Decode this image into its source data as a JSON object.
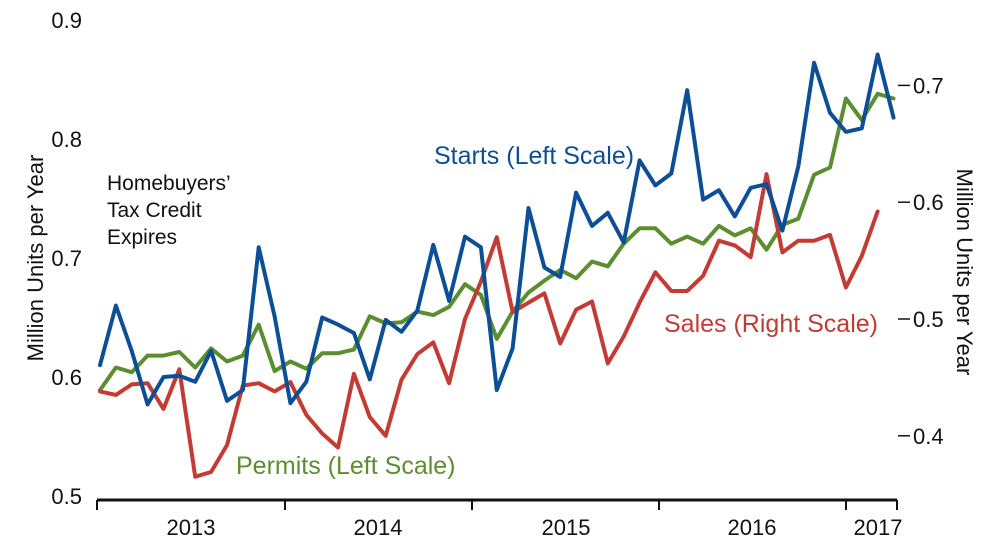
{
  "chart_data": {
    "type": "line",
    "x_axis": {
      "tick_labels": [
        "2013",
        "2014",
        "2015",
        "2016",
        "2017"
      ]
    },
    "left_axis": {
      "label": "Million Units per Year",
      "ticks": [
        "0.5",
        "0.6",
        "0.7",
        "0.8",
        "0.9"
      ],
      "range": [
        0.5,
        0.9
      ]
    },
    "right_axis": {
      "label": "Million Units per Year",
      "ticks": [
        "0.4",
        "0.5",
        "0.6",
        "0.7"
      ],
      "range": [
        0.35,
        0.7
      ],
      "tick_values": [
        0.4,
        0.5,
        0.6,
        0.7
      ]
    },
    "annotation": [
      "Homebuyers’",
      "Tax Credit",
      "Expires"
    ],
    "x_start": "2012-08",
    "series": [
      {
        "name": "Starts (Left Scale)",
        "axis": "left",
        "color": "#0d4f96",
        "values": [
          0.61,
          0.66,
          0.622,
          0.577,
          0.6,
          0.601,
          0.596,
          0.622,
          0.58,
          0.589,
          0.709,
          0.651,
          0.578,
          0.596,
          0.65,
          0.644,
          0.637,
          0.598,
          0.648,
          0.638,
          0.656,
          0.711,
          0.664,
          0.718,
          0.709,
          0.589,
          0.624,
          0.742,
          0.692,
          0.684,
          0.755,
          0.727,
          0.738,
          0.713,
          0.782,
          0.761,
          0.771,
          0.841,
          0.749,
          0.757,
          0.735,
          0.759,
          0.762,
          0.723,
          0.777,
          0.864,
          0.822,
          0.806,
          0.809,
          0.871,
          0.818
        ]
      },
      {
        "name": "Permits (Left Scale)",
        "axis": "left",
        "color": "#5b8e2f",
        "values": [
          0.589,
          0.608,
          0.604,
          0.618,
          0.618,
          0.621,
          0.608,
          0.624,
          0.613,
          0.618,
          0.644,
          0.605,
          0.613,
          0.607,
          0.62,
          0.62,
          0.623,
          0.651,
          0.645,
          0.646,
          0.655,
          0.652,
          0.659,
          0.678,
          0.669,
          0.632,
          0.655,
          0.671,
          0.681,
          0.69,
          0.683,
          0.697,
          0.693,
          0.712,
          0.725,
          0.725,
          0.712,
          0.718,
          0.712,
          0.727,
          0.719,
          0.725,
          0.707,
          0.728,
          0.733,
          0.77,
          0.776,
          0.834,
          0.816,
          0.838,
          0.834
        ]
      },
      {
        "name": "Sales (Right Scale)",
        "axis": "right",
        "color": "#c43b33",
        "values": [
          0.438,
          0.435,
          0.444,
          0.445,
          0.423,
          0.457,
          0.365,
          0.369,
          0.392,
          0.443,
          0.445,
          0.438,
          0.446,
          0.418,
          0.402,
          0.39,
          0.453,
          0.416,
          0.4,
          0.448,
          0.47,
          0.48,
          0.445,
          0.5,
          0.532,
          0.57,
          0.506,
          0.514,
          0.522,
          0.479,
          0.508,
          0.515,
          0.462,
          0.485,
          0.514,
          0.54,
          0.524,
          0.524,
          0.537,
          0.567,
          0.563,
          0.553,
          0.624,
          0.557,
          0.567,
          0.567,
          0.572,
          0.527,
          0.554,
          0.592
        ]
      }
    ]
  }
}
